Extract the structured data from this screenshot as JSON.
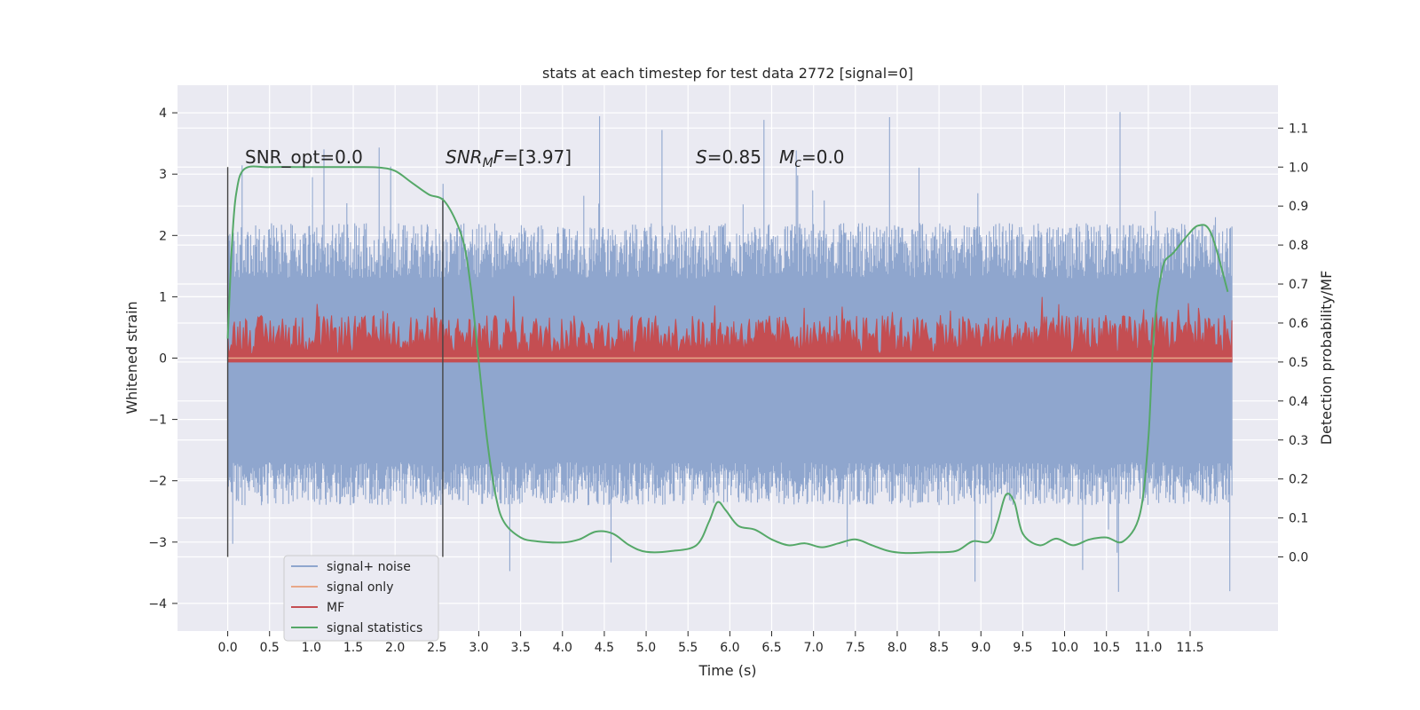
{
  "chart_data": {
    "type": "line",
    "title": "stats at each timestep for test data 2772 [signal=0]",
    "xlabel": "Time (s)",
    "ylabel": "Whitened strain",
    "y2label": "Detection probability/MF",
    "xlim": [
      -0.6,
      12.55
    ],
    "ylim": [
      -4.45,
      4.45
    ],
    "y2lim": [
      -0.19,
      1.21
    ],
    "x_ticks": [
      "0.0",
      "0.5",
      "1.0",
      "1.5",
      "2.0",
      "2.5",
      "3.0",
      "3.5",
      "4.0",
      "4.5",
      "5.0",
      "5.5",
      "6.0",
      "6.5",
      "7.0",
      "7.5",
      "8.0",
      "8.5",
      "9.0",
      "9.5",
      "10.0",
      "10.5",
      "11.0",
      "11.5"
    ],
    "y_ticks": [
      "4",
      "3",
      "2",
      "1",
      "0",
      "−1",
      "−2",
      "−3",
      "−4"
    ],
    "y2_ticks": [
      "1.1",
      "1.0",
      "0.9",
      "0.8",
      "0.7",
      "0.6",
      "0.5",
      "0.4",
      "0.3",
      "0.2",
      "0.1",
      "0.0"
    ],
    "grid": true,
    "legend_position": "lower-left",
    "legend": [
      "signal+ noise",
      "signal only",
      "MF",
      "signal statistics"
    ],
    "annotations": {
      "snr_opt": "SNR_opt=0.0",
      "snr_mf_sym": "SNR",
      "snr_mf_sub": "M",
      "snr_mf_sym2": "F",
      "snr_mf_val": "=[3.97]",
      "s_sym": "S",
      "s_val": "=0.85",
      "mc_sym": "M",
      "mc_sub": "c",
      "mc_val": "=0.0"
    },
    "markers": [
      {
        "x": 0.0,
        "y2_range": [
          0.0,
          1.0
        ]
      },
      {
        "x": 2.57,
        "y2_range": [
          0.0,
          0.92
        ]
      }
    ],
    "series": [
      {
        "name": "signal+ noise",
        "color": "#8fa6ce",
        "x_range": [
          0.0,
          12.0
        ],
        "envelope_y": {
          "typical_max": 2.2,
          "typical_min": -2.4,
          "core_band": [
            -1.7,
            1.3
          ],
          "peak_max": 4.05,
          "peak_min": -4.1
        }
      },
      {
        "name": "signal only",
        "color": "#e8a889",
        "x": [
          0.0,
          12.0
        ],
        "y": [
          0.0,
          0.0
        ]
      },
      {
        "name": "MF",
        "color": "#c44e52",
        "x_range": [
          0.0,
          12.0
        ],
        "band_y2": [
          0.5,
          0.62
        ],
        "peak_y2": 0.67
      },
      {
        "name": "signal statistics",
        "color": "#55a868",
        "x": [
          0.0,
          0.05,
          0.1,
          0.2,
          0.5,
          1.0,
          1.5,
          1.8,
          2.0,
          2.2,
          2.4,
          2.6,
          2.8,
          2.9,
          3.0,
          3.1,
          3.2,
          3.3,
          3.5,
          3.7,
          4.0,
          4.2,
          4.4,
          4.6,
          4.8,
          5.0,
          5.3,
          5.6,
          5.75,
          5.85,
          5.95,
          6.1,
          6.3,
          6.5,
          6.7,
          6.9,
          7.1,
          7.3,
          7.5,
          7.7,
          7.9,
          8.1,
          8.4,
          8.7,
          8.9,
          9.1,
          9.2,
          9.3,
          9.4,
          9.5,
          9.7,
          9.9,
          10.1,
          10.3,
          10.5,
          10.7,
          10.9,
          11.0,
          11.05,
          11.1,
          11.15,
          11.2,
          11.3,
          11.45,
          11.6,
          11.75,
          11.95
        ],
        "y": [
          0.56,
          0.8,
          0.93,
          0.995,
          1.0,
          1.0,
          1.0,
          0.999,
          0.99,
          0.96,
          0.93,
          0.91,
          0.82,
          0.7,
          0.5,
          0.3,
          0.16,
          0.09,
          0.05,
          0.04,
          0.037,
          0.045,
          0.065,
          0.06,
          0.03,
          0.013,
          0.015,
          0.03,
          0.09,
          0.14,
          0.12,
          0.08,
          0.07,
          0.045,
          0.03,
          0.035,
          0.025,
          0.035,
          0.045,
          0.03,
          0.015,
          0.01,
          0.012,
          0.015,
          0.04,
          0.04,
          0.09,
          0.16,
          0.14,
          0.06,
          0.03,
          0.047,
          0.03,
          0.045,
          0.05,
          0.04,
          0.11,
          0.3,
          0.52,
          0.65,
          0.72,
          0.76,
          0.78,
          0.82,
          0.85,
          0.83,
          0.68
        ]
      }
    ]
  }
}
